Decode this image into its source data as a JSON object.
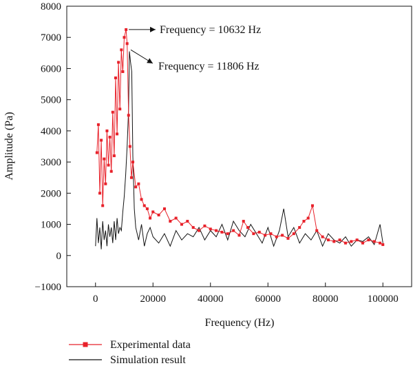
{
  "chart_data": {
    "type": "line",
    "xlabel": "Frequency (Hz)",
    "ylabel": "Amplitude (Pa)",
    "xlim": [
      -10000,
      110000
    ],
    "ylim": [
      -1000,
      8000
    ],
    "x_ticks": [
      0,
      20000,
      40000,
      60000,
      80000,
      100000
    ],
    "y_ticks": [
      -1000,
      0,
      1000,
      2000,
      3000,
      4000,
      5000,
      6000,
      7000,
      8000
    ],
    "grid": false,
    "legend_position": "bottom-left",
    "annotations": [
      {
        "text": "Frequency = 10632 Hz",
        "x": 10632,
        "y": 7250
      },
      {
        "text": "Frequency = 11806 Hz",
        "x": 11806,
        "y": 6600
      }
    ],
    "series": [
      {
        "name": "Experimental data",
        "color": "#e8212a",
        "marker": "square",
        "x": [
          500,
          1000,
          1500,
          2000,
          2500,
          3000,
          3500,
          4000,
          4500,
          5000,
          5500,
          6000,
          6500,
          7000,
          7500,
          8000,
          8500,
          9000,
          9500,
          10000,
          10632,
          11000,
          11500,
          12000,
          12500,
          13000,
          14000,
          15000,
          16000,
          17000,
          18000,
          19000,
          20000,
          22000,
          24000,
          26000,
          28000,
          30000,
          32000,
          34000,
          36000,
          38000,
          40000,
          42000,
          44000,
          46000,
          48000,
          50000,
          51500,
          53000,
          55000,
          57000,
          59000,
          61000,
          63000,
          65000,
          67000,
          69000,
          71000,
          72500,
          74000,
          75500,
          77000,
          79000,
          81000,
          83000,
          85000,
          87000,
          89000,
          91000,
          93000,
          95000,
          97000,
          99000,
          100000
        ],
        "y": [
          3300,
          4200,
          2000,
          3700,
          1600,
          3100,
          2300,
          4000,
          2900,
          3800,
          2700,
          4600,
          3200,
          5700,
          3900,
          6200,
          4700,
          6600,
          5900,
          7000,
          7250,
          6800,
          4500,
          3500,
          2500,
          3000,
          2200,
          2300,
          1800,
          1600,
          1500,
          1200,
          1400,
          1300,
          1500,
          1100,
          1200,
          1000,
          1100,
          900,
          800,
          950,
          850,
          800,
          750,
          700,
          800,
          650,
          1100,
          900,
          700,
          750,
          650,
          700,
          600,
          650,
          550,
          700,
          900,
          1100,
          1200,
          1600,
          800,
          600,
          500,
          450,
          500,
          400,
          450,
          500,
          400,
          500,
          450,
          400,
          350
        ]
      },
      {
        "name": "Simulation result",
        "color": "#111111",
        "x": [
          0,
          500,
          1000,
          1500,
          2000,
          2500,
          3000,
          3500,
          4000,
          4500,
          5000,
          5500,
          6000,
          6500,
          7000,
          7500,
          8000,
          8500,
          9000,
          9500,
          10000,
          10500,
          11000,
          11500,
          11806,
          12200,
          12600,
          13000,
          13500,
          14000,
          15000,
          16000,
          17000,
          18000,
          19000,
          20000,
          22000,
          24000,
          26000,
          28000,
          30000,
          32000,
          34000,
          36000,
          38000,
          40000,
          42000,
          44000,
          46000,
          48000,
          50000,
          52000,
          54000,
          56000,
          58000,
          60000,
          62000,
          64000,
          65500,
          67000,
          69000,
          71000,
          73000,
          75000,
          77000,
          79000,
          81000,
          83000,
          85000,
          87000,
          89000,
          91000,
          93000,
          95000,
          97000,
          99000,
          100000
        ],
        "y": [
          300,
          1200,
          400,
          900,
          200,
          1100,
          500,
          800,
          300,
          1000,
          600,
          900,
          400,
          1100,
          500,
          1200,
          700,
          900,
          800,
          1400,
          1900,
          2600,
          3500,
          4700,
          6550,
          6200,
          5900,
          3200,
          1500,
          900,
          500,
          1000,
          300,
          700,
          900,
          600,
          400,
          700,
          300,
          800,
          500,
          700,
          600,
          900,
          500,
          800,
          600,
          1000,
          500,
          1100,
          800,
          600,
          1000,
          700,
          400,
          900,
          300,
          800,
          1500,
          600,
          900,
          400,
          700,
          500,
          800,
          300,
          700,
          500,
          400,
          600,
          300,
          500,
          450,
          600,
          350,
          1000,
          400
        ]
      }
    ]
  }
}
